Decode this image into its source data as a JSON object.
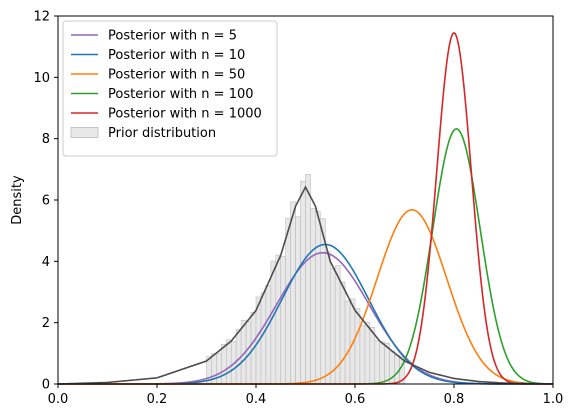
{
  "chart_data": {
    "type": "line",
    "title": "",
    "xlabel": "",
    "ylabel": "Density",
    "xlim": [
      0.0,
      1.0
    ],
    "ylim": [
      0,
      12
    ],
    "xticks": [
      "0.0",
      "0.2",
      "0.4",
      "0.6",
      "0.8",
      "1.0"
    ],
    "yticks": [
      "0",
      "2",
      "4",
      "6",
      "8",
      "10",
      "12"
    ],
    "grid": false,
    "legend_position": "top-left",
    "series": [
      {
        "name": "Posterior with n = 5",
        "color": "#9467bd",
        "mean": 0.535,
        "peak": 4.28
      },
      {
        "name": "Posterior with n = 10",
        "color": "#1f77b4",
        "mean": 0.54,
        "peak": 4.55
      },
      {
        "name": "Posterior with n = 50",
        "color": "#ff7f0e",
        "mean": 0.715,
        "peak": 5.68
      },
      {
        "name": "Posterior with n = 100",
        "color": "#2ca02c",
        "mean": 0.805,
        "peak": 8.32
      },
      {
        "name": "Posterior with n = 1000",
        "color": "#d62728",
        "mean": 0.8,
        "peak": 11.45
      }
    ],
    "prior_curve": {
      "color": "#4d4d4d",
      "x": [
        0.0,
        0.1,
        0.2,
        0.3,
        0.35,
        0.4,
        0.45,
        0.48,
        0.5,
        0.52,
        0.55,
        0.6,
        0.65,
        0.7,
        0.75,
        0.8,
        0.85,
        0.9,
        1.0
      ],
      "y": [
        0.0,
        0.05,
        0.2,
        0.75,
        1.4,
        2.4,
        4.2,
        5.8,
        6.42,
        5.8,
        4.0,
        2.4,
        1.4,
        0.75,
        0.38,
        0.18,
        0.08,
        0.03,
        0.0
      ]
    },
    "prior_histogram": {
      "name": "Prior distribution",
      "color": "#e8e8e8",
      "edge_color": "#bbbbbb",
      "bin_width": 0.01,
      "x_range": [
        0.3,
        0.7
      ]
    }
  }
}
